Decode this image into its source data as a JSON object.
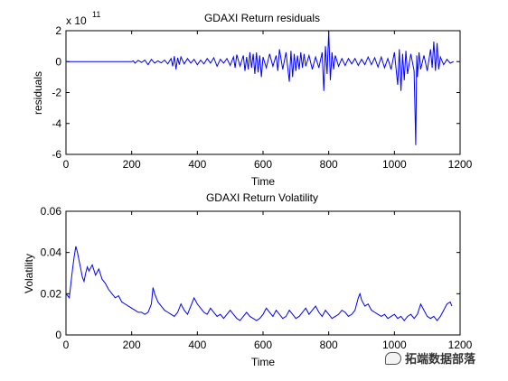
{
  "chart_data": [
    {
      "type": "line",
      "title": "GDAXI Return residuals",
      "xlabel": "Time",
      "ylabel": "residuals",
      "exponent_label": "x 10",
      "exponent_power": "11",
      "xlim": [
        0,
        1200
      ],
      "ylim": [
        -6,
        2
      ],
      "xticks": [
        "0",
        "200",
        "400",
        "600",
        "800",
        "1000",
        "1200"
      ],
      "yticks": [
        "-6",
        "-4",
        "-2",
        "0",
        "2"
      ],
      "color": "#0000ff",
      "grid": false,
      "series": [
        {
          "x": [
            0,
            100,
            200,
            205,
            210,
            220,
            230,
            240,
            250,
            260,
            270,
            280,
            290,
            300,
            310,
            320,
            325,
            330,
            335,
            340,
            345,
            350,
            360,
            370,
            380,
            390,
            400,
            410,
            420,
            430,
            440,
            450,
            460,
            470,
            480,
            490,
            500,
            510,
            515,
            520,
            530,
            540,
            545,
            550,
            555,
            560,
            565,
            570,
            575,
            580,
            585,
            590,
            595,
            600,
            610,
            620,
            630,
            640,
            645,
            650,
            660,
            670,
            680,
            685,
            690,
            695,
            700,
            705,
            710,
            715,
            720,
            725,
            730,
            740,
            750,
            760,
            770,
            780,
            785,
            790,
            795,
            800,
            805,
            810,
            815,
            820,
            830,
            840,
            850,
            860,
            870,
            880,
            890,
            900,
            910,
            920,
            930,
            940,
            950,
            960,
            970,
            980,
            990,
            1000,
            1010,
            1015,
            1020,
            1025,
            1030,
            1035,
            1040,
            1050,
            1060,
            1065,
            1068,
            1070,
            1075,
            1080,
            1090,
            1100,
            1110,
            1115,
            1120,
            1125,
            1130,
            1135,
            1140,
            1150,
            1160,
            1170,
            1180
          ],
          "y": [
            0,
            0,
            0,
            0.05,
            -0.1,
            0.08,
            -0.05,
            0.1,
            -0.2,
            0.15,
            -0.1,
            0.05,
            -0.08,
            0.1,
            -0.15,
            0.2,
            -0.3,
            0.35,
            -0.5,
            0.25,
            -0.2,
            0.3,
            -0.15,
            0.2,
            -0.1,
            0.15,
            -0.2,
            0.1,
            -0.15,
            0.2,
            -0.1,
            0.25,
            -0.3,
            0.15,
            -0.1,
            0.2,
            -0.25,
            0.3,
            -0.4,
            0.45,
            -0.3,
            0.4,
            -0.6,
            0.3,
            -0.5,
            0.6,
            -0.4,
            0.5,
            -0.8,
            0.6,
            -0.7,
            0.4,
            -1.0,
            0.3,
            -0.4,
            0.5,
            -0.3,
            0.4,
            -0.6,
            0.8,
            -0.5,
            0.6,
            -1.3,
            0.7,
            -1.0,
            0.5,
            -0.6,
            0.4,
            -0.5,
            0.6,
            -0.4,
            0.5,
            -0.3,
            0.4,
            -0.5,
            0.3,
            -0.4,
            0.6,
            -1.9,
            1.0,
            -0.8,
            1.95,
            -1.2,
            0.6,
            -0.5,
            0.4,
            -0.3,
            0.2,
            -0.25,
            0.2,
            -0.15,
            0.2,
            -0.25,
            0.15,
            -0.2,
            0.3,
            -0.2,
            0.25,
            -0.35,
            0.3,
            -0.4,
            0.2,
            -0.5,
            0.6,
            -1.5,
            0.8,
            -1.9,
            0.5,
            -1.2,
            0.7,
            -0.8,
            0.5,
            -0.6,
            -5.4,
            0.4,
            -1.0,
            0.6,
            -0.5,
            0.4,
            -0.6,
            0.8,
            -0.4,
            1.3,
            -0.6,
            1.2,
            -0.5,
            0.3,
            -0.2,
            0.15,
            -0.1,
            0
          ]
        }
      ]
    },
    {
      "type": "line",
      "title": "GDAXI Return Volatility",
      "xlabel": "Time",
      "ylabel": "Volatility",
      "xlim": [
        0,
        1200
      ],
      "ylim": [
        0,
        0.06
      ],
      "xticks": [
        "0",
        "200",
        "400",
        "600",
        "800",
        "1000",
        "1200"
      ],
      "yticks": [
        "0",
        "0.02",
        "0.04",
        "0.06"
      ],
      "color": "#0000ff",
      "grid": false,
      "series": [
        {
          "x": [
            0,
            5,
            10,
            15,
            20,
            25,
            30,
            35,
            40,
            45,
            50,
            55,
            60,
            65,
            70,
            80,
            90,
            100,
            110,
            120,
            130,
            140,
            150,
            160,
            170,
            180,
            190,
            200,
            210,
            220,
            230,
            240,
            250,
            260,
            265,
            270,
            280,
            290,
            300,
            310,
            320,
            330,
            340,
            350,
            360,
            370,
            380,
            390,
            400,
            410,
            420,
            430,
            440,
            450,
            460,
            470,
            480,
            490,
            500,
            510,
            520,
            530,
            540,
            550,
            560,
            570,
            580,
            590,
            600,
            610,
            620,
            630,
            640,
            650,
            660,
            670,
            680,
            690,
            700,
            710,
            720,
            730,
            740,
            750,
            760,
            770,
            780,
            790,
            800,
            810,
            820,
            830,
            840,
            850,
            860,
            870,
            880,
            890,
            895,
            900,
            910,
            920,
            930,
            940,
            950,
            960,
            970,
            980,
            990,
            1000,
            1010,
            1020,
            1030,
            1040,
            1050,
            1060,
            1070,
            1080,
            1090,
            1100,
            1110,
            1120,
            1130,
            1140,
            1150,
            1160,
            1170,
            1175
          ],
          "y": [
            0.02,
            0.019,
            0.018,
            0.025,
            0.032,
            0.038,
            0.043,
            0.04,
            0.036,
            0.032,
            0.028,
            0.026,
            0.03,
            0.033,
            0.031,
            0.034,
            0.029,
            0.032,
            0.027,
            0.025,
            0.022,
            0.02,
            0.018,
            0.019,
            0.016,
            0.015,
            0.014,
            0.013,
            0.012,
            0.011,
            0.011,
            0.01,
            0.011,
            0.015,
            0.023,
            0.02,
            0.016,
            0.014,
            0.012,
            0.011,
            0.01,
            0.009,
            0.011,
            0.015,
            0.012,
            0.01,
            0.014,
            0.018,
            0.015,
            0.013,
            0.011,
            0.01,
            0.013,
            0.011,
            0.009,
            0.01,
            0.008,
            0.01,
            0.012,
            0.01,
            0.008,
            0.007,
            0.009,
            0.011,
            0.009,
            0.008,
            0.007,
            0.008,
            0.01,
            0.013,
            0.011,
            0.009,
            0.012,
            0.01,
            0.008,
            0.009,
            0.012,
            0.01,
            0.008,
            0.009,
            0.011,
            0.013,
            0.01,
            0.012,
            0.014,
            0.011,
            0.009,
            0.012,
            0.01,
            0.008,
            0.009,
            0.01,
            0.012,
            0.011,
            0.009,
            0.01,
            0.012,
            0.018,
            0.02,
            0.017,
            0.014,
            0.015,
            0.012,
            0.011,
            0.01,
            0.009,
            0.01,
            0.008,
            0.009,
            0.01,
            0.008,
            0.009,
            0.007,
            0.009,
            0.01,
            0.008,
            0.01,
            0.015,
            0.012,
            0.009,
            0.008,
            0.009,
            0.007,
            0.009,
            0.012,
            0.015,
            0.016,
            0.014
          ]
        }
      ]
    }
  ],
  "watermark": {
    "text": "拓端数据部落",
    "icon": "chat-bubble-icon"
  }
}
